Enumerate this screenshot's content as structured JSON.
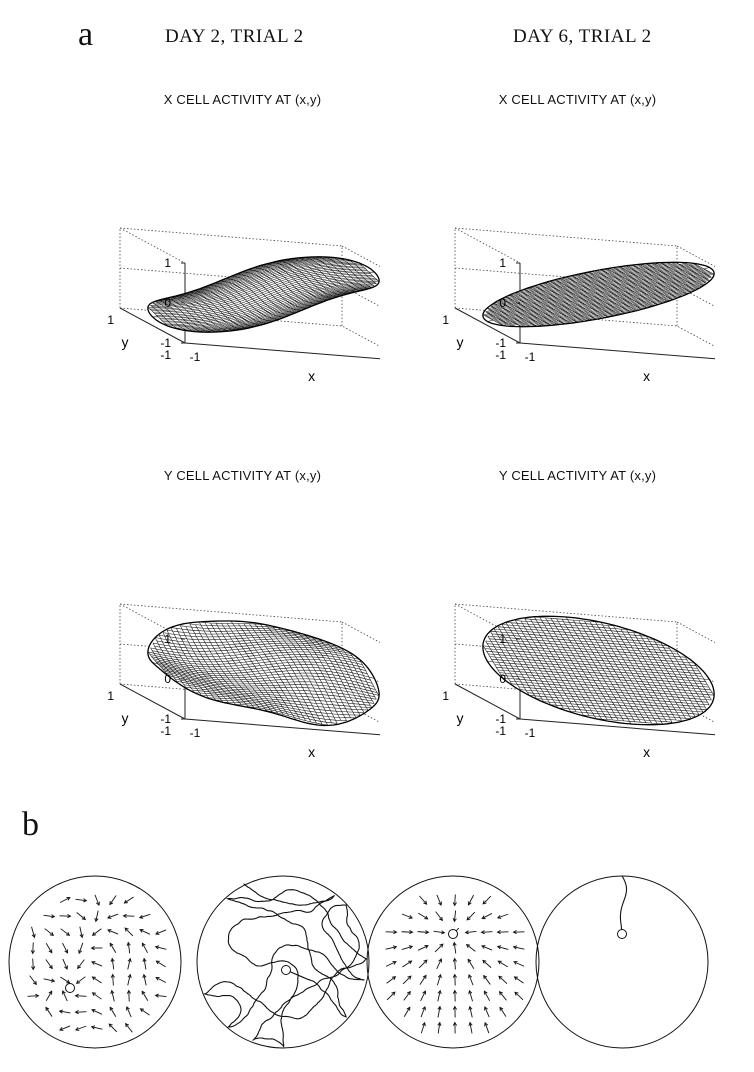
{
  "figure": {
    "panel_a_label": "a",
    "panel_b_label": "b",
    "column_headers": [
      "DAY 2, TRIAL 2",
      "DAY 6, TRIAL 2"
    ]
  },
  "plots": [
    {
      "id": "x-day2",
      "title": "X CELL ACTIVITY AT (x,y)",
      "surface": "x-wavy"
    },
    {
      "id": "x-day6",
      "title": "X CELL ACTIVITY AT (x,y)",
      "surface": "x-smooth"
    },
    {
      "id": "y-day2",
      "title": "Y CELL ACTIVITY AT (x,y)",
      "surface": "y-wavy"
    },
    {
      "id": "y-day6",
      "title": "Y CELL ACTIVITY AT (x,y)",
      "surface": "y-smooth"
    }
  ],
  "axes": {
    "z_ticks": [
      "1",
      "0",
      "-1"
    ],
    "y_ticks": [
      "1",
      "-1"
    ],
    "x_ticks": [
      "-1",
      "1"
    ],
    "x_label": "x",
    "y_label": "y"
  },
  "panel_b": {
    "circles": [
      {
        "id": "vector-field-day2",
        "kind": "vector-field",
        "convergent": false
      },
      {
        "id": "swim-path-day2",
        "kind": "path",
        "convergent": false
      },
      {
        "id": "vector-field-day6",
        "kind": "vector-field",
        "convergent": true
      },
      {
        "id": "swim-path-day6",
        "kind": "path",
        "convergent": true
      }
    ]
  }
}
